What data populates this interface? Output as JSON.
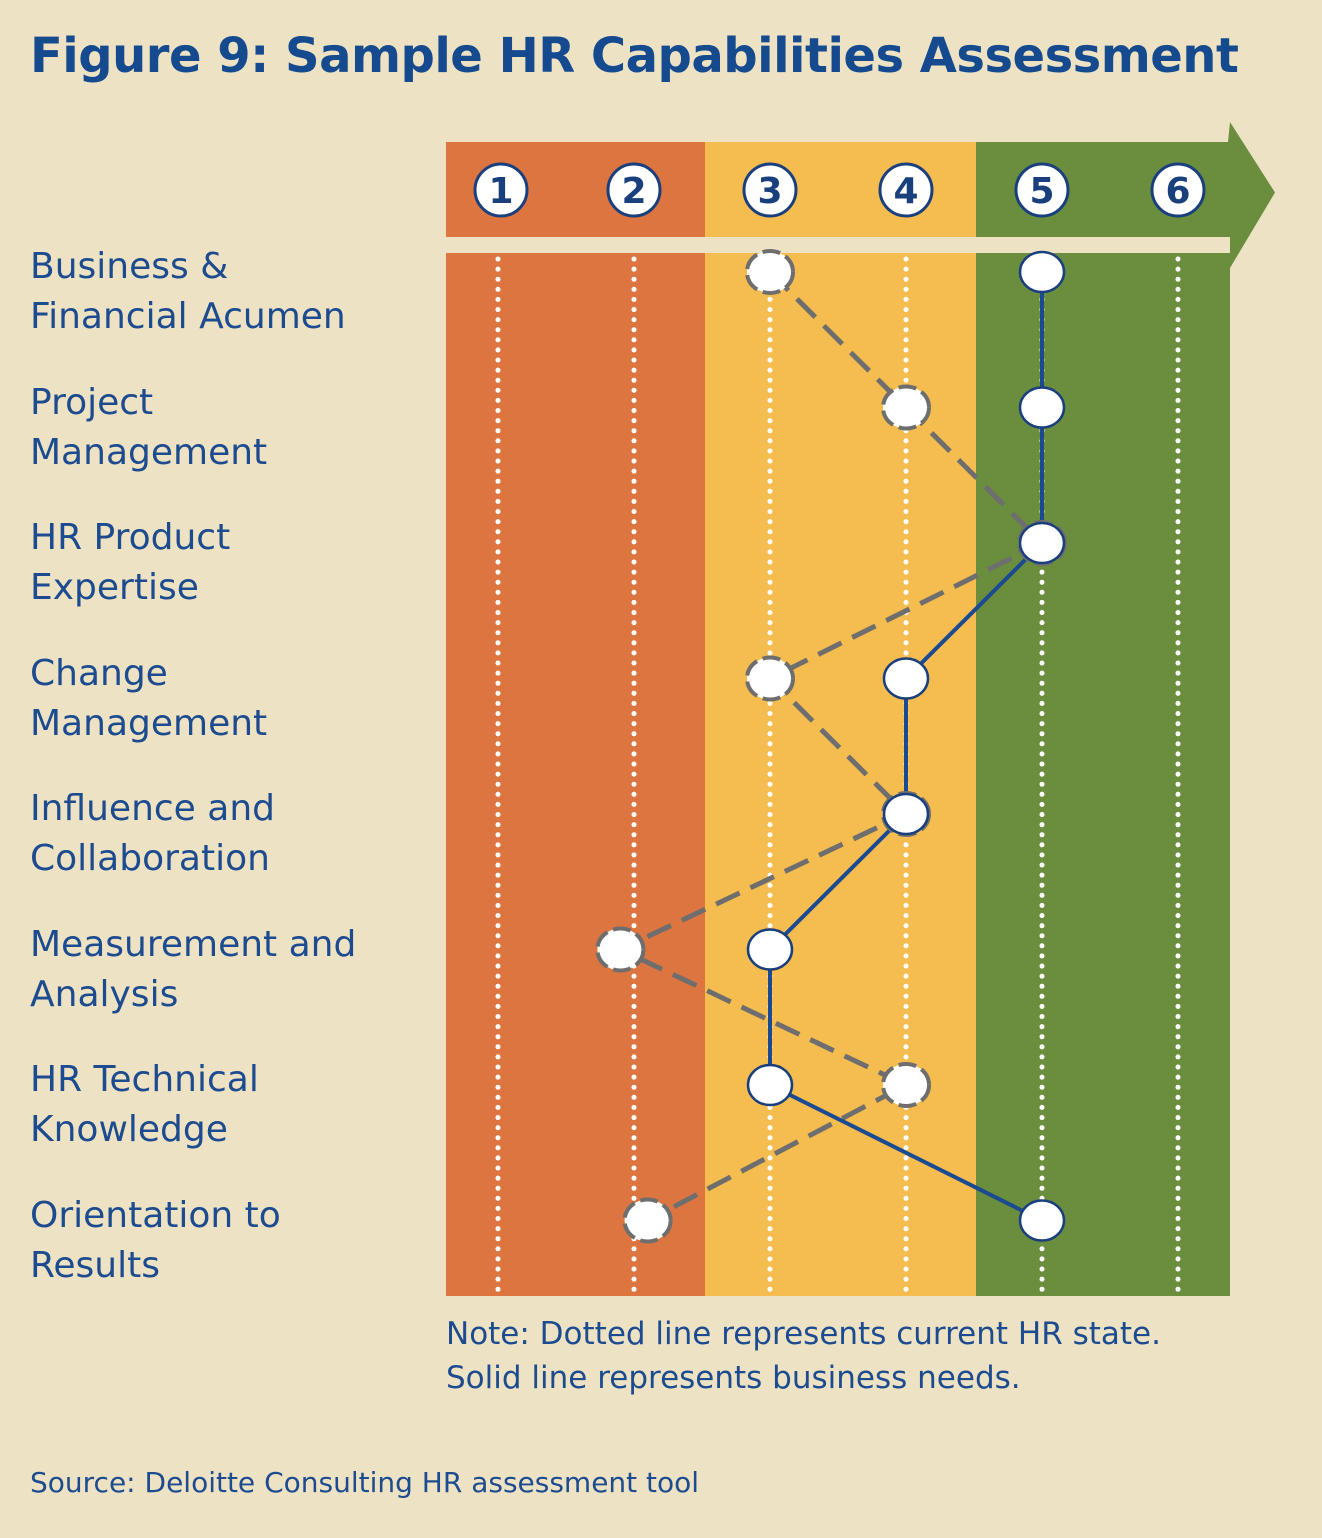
{
  "title": "Figure 9: Sample HR Capabilities Assessment",
  "colors": {
    "background": "#ede3c4",
    "level_1_2": "#dc7540",
    "level_3_4": "#f5bc4f",
    "level_5_6": "#6a8e3e",
    "current_line": "#6e6e6e",
    "needs_line": "#1a4a92",
    "text": "#1d4b8f"
  },
  "chart_data": {
    "type": "line",
    "title": "Figure 9: Sample HR Capabilities Assessment",
    "scale_levels": [
      "1",
      "2",
      "3",
      "4",
      "5",
      "6"
    ],
    "categories": [
      "Business & Financial Acumen",
      "Project Management",
      "HR Product Expertise",
      "Change Management",
      "Influence and Collaboration",
      "Measurement and Analysis",
      "HR Technical Knowledge",
      "Orientation to Results"
    ],
    "category_labels": [
      [
        "Business &",
        "Financial Acumen"
      ],
      [
        "Project",
        "Management"
      ],
      [
        "HR Product",
        "Expertise"
      ],
      [
        "Change",
        "Management"
      ],
      [
        "Influence and",
        "Collaboration"
      ],
      [
        "Measurement and",
        "Analysis"
      ],
      [
        "HR Technical",
        "Knowledge"
      ],
      [
        "Orientation to",
        "Results"
      ]
    ],
    "series": [
      {
        "style": "dashed",
        "values": [
          3,
          4,
          5,
          3,
          4,
          1.9,
          4,
          2.1
        ]
      },
      {
        "style": "solid",
        "values": [
          5,
          5,
          5,
          4,
          4,
          3,
          3,
          5
        ]
      }
    ],
    "bands": [
      {
        "from": 1,
        "to": 2,
        "color": "#dc7540"
      },
      {
        "from": 3,
        "to": 4,
        "color": "#f5bc4f"
      },
      {
        "from": 5,
        "to": 6,
        "color": "#6a8e3e"
      }
    ],
    "note": [
      "Note: Dotted line represents current HR state.",
      "Solid line represents business needs."
    ],
    "source": "Source: Deloitte Consulting HR assessment tool"
  }
}
